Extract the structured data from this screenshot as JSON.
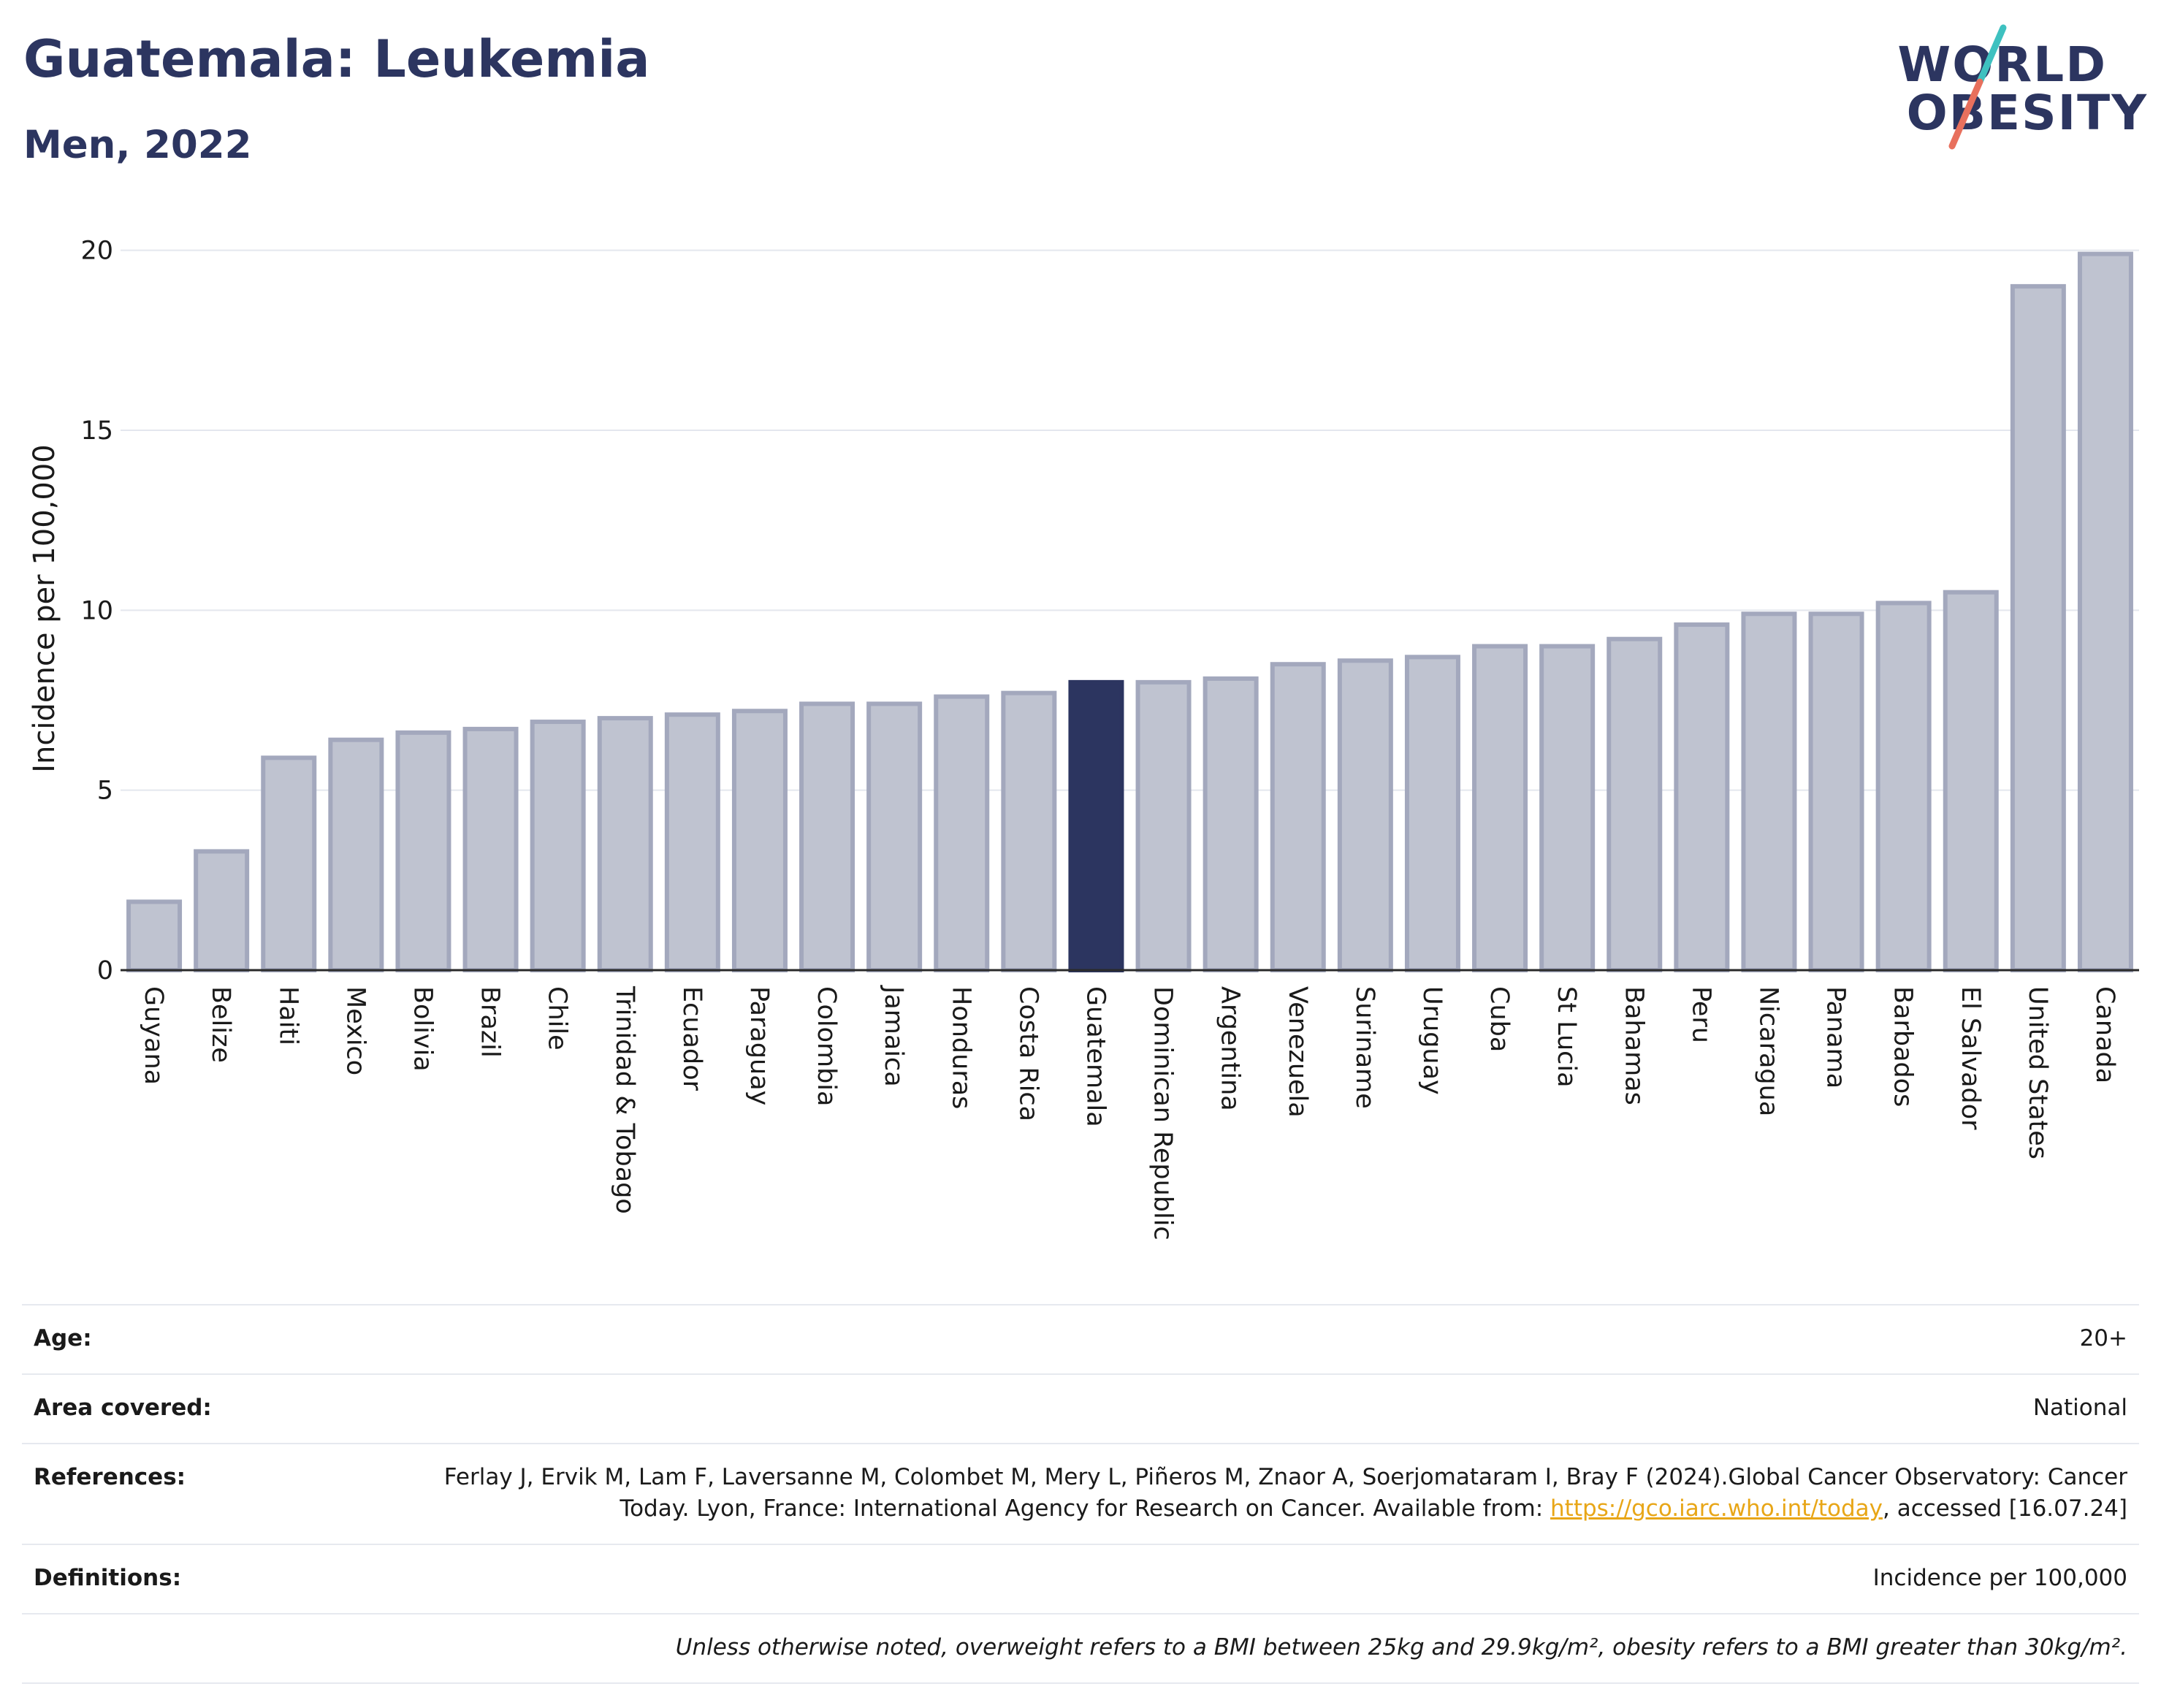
{
  "header": {
    "title": "Guatemala: Leukemia",
    "subtitle": "Men, 2022",
    "logo_line1": "WORLD",
    "logo_line2": "OBESITY"
  },
  "chart_data": {
    "type": "bar",
    "ylabel": "Incidence per 100,000",
    "ylim": [
      0,
      20.5
    ],
    "yticks": [
      0,
      5,
      10,
      15,
      20
    ],
    "grid": true,
    "highlight": "Guatemala",
    "highlight_color": "#2c3560",
    "bar_color": "#bfc3d0",
    "bar_edge_color": "#a3a8bd",
    "categories": [
      "Guyana",
      "Belize",
      "Haiti",
      "Mexico",
      "Bolivia",
      "Brazil",
      "Chile",
      "Trinidad & Tobago",
      "Ecuador",
      "Paraguay",
      "Colombia",
      "Jamaica",
      "Honduras",
      "Costa Rica",
      "Guatemala",
      "Dominican Republic",
      "Argentina",
      "Venezuela",
      "Suriname",
      "Uruguay",
      "Cuba",
      "St Lucia",
      "Bahamas",
      "Peru",
      "Nicaragua",
      "Panama",
      "Barbados",
      "El Salvador",
      "United States",
      "Canada"
    ],
    "values": [
      1.9,
      3.3,
      5.9,
      6.4,
      6.6,
      6.7,
      6.9,
      7.0,
      7.1,
      7.2,
      7.4,
      7.4,
      7.6,
      7.7,
      8.0,
      8.0,
      8.1,
      8.5,
      8.6,
      8.7,
      9.0,
      9.0,
      9.2,
      9.6,
      9.9,
      9.9,
      10.2,
      10.5,
      19.0,
      19.9
    ]
  },
  "info": {
    "age_label": "Age:",
    "age_value": "20+",
    "area_label": "Area covered:",
    "area_value": "National",
    "references_label": "References:",
    "references_text": "Ferlay J, Ervik M, Lam F, Laversanne M, Colombet M, Mery L, Piñeros M, Znaor A, Soerjomataram I, Bray F (2024).Global Cancer Observatory: Cancer Today. Lyon, France: International Agency for Research on Cancer. Available from: ",
    "references_link": "https://gco.iarc.who.int/today",
    "references_tail": ", accessed [16.07.24]",
    "definitions_label": "Definitions:",
    "definitions_value": "Incidence per 100,000",
    "footnote": "Unless otherwise noted, overweight refers to a BMI between 25kg and 29.9kg/m², obesity refers to a BMI greater than 30kg/m²."
  }
}
